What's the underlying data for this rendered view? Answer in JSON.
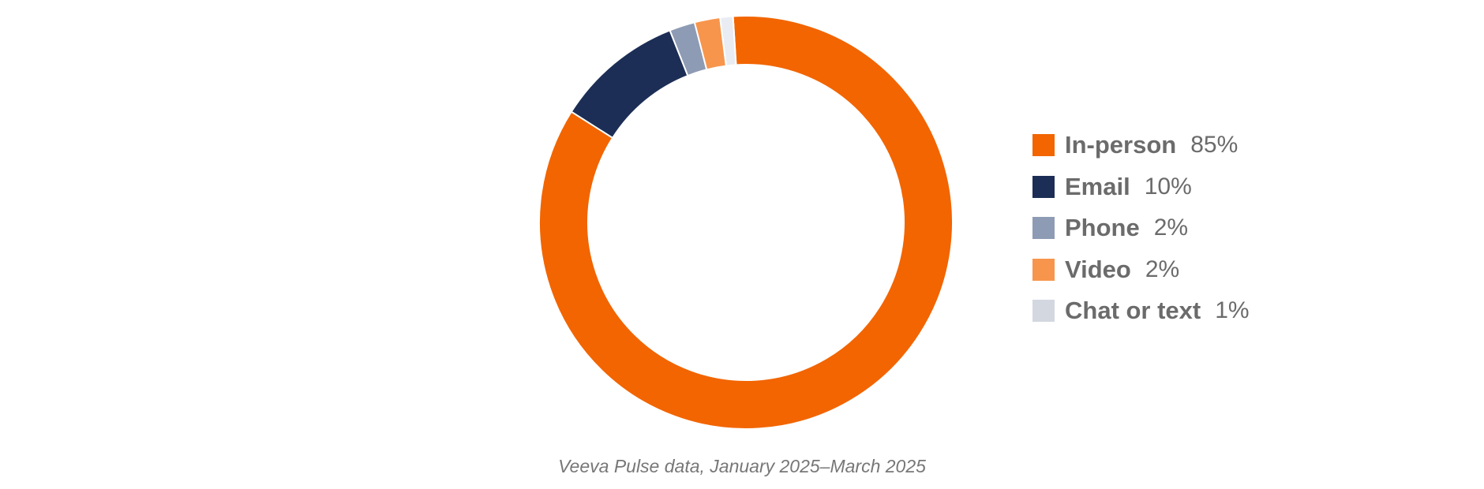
{
  "chart_data": {
    "type": "pie",
    "style": "donut",
    "categories": [
      "In-person",
      "Email",
      "Phone",
      "Video",
      "Chat or text"
    ],
    "values": [
      85,
      10,
      2,
      2,
      1
    ],
    "value_labels": [
      "85%",
      "10%",
      "2%",
      "2%",
      "1%"
    ],
    "colors": [
      "#F26500",
      "#1C2E55",
      "#8E9BB4",
      "#F7954C",
      "#E9ECF2"
    ],
    "legend_colors": [
      "#F26500",
      "#1C2E55",
      "#8E9BB4",
      "#F7954C",
      "#D3D7E0"
    ],
    "legend_position": "right",
    "caption": "Veeva Pulse data, January 2025–March 2025"
  }
}
